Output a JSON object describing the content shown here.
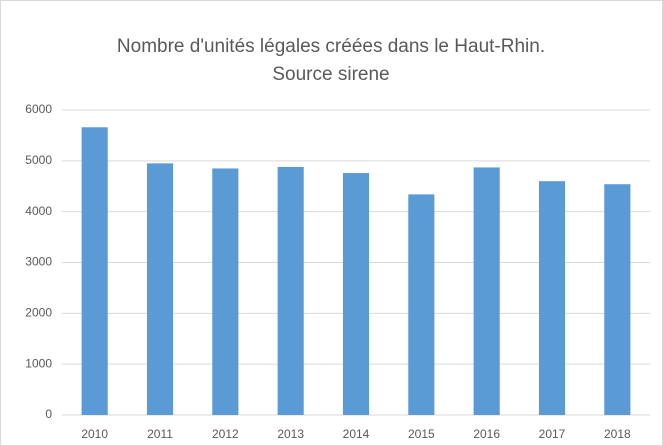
{
  "chart_data": {
    "type": "bar",
    "title": [
      "Nombre d'unités légales créées dans le Haut-Rhin.",
      "Source sirene"
    ],
    "categories": [
      "2010",
      "2011",
      "2012",
      "2013",
      "2014",
      "2015",
      "2016",
      "2017",
      "2018"
    ],
    "values": [
      5660,
      4950,
      4850,
      4880,
      4760,
      4340,
      4870,
      4600,
      4540
    ],
    "color": "#5b9bd5",
    "ylim": [
      0,
      6000
    ],
    "yticks": [
      0,
      1000,
      2000,
      3000,
      4000,
      5000,
      6000
    ],
    "grid": true
  }
}
